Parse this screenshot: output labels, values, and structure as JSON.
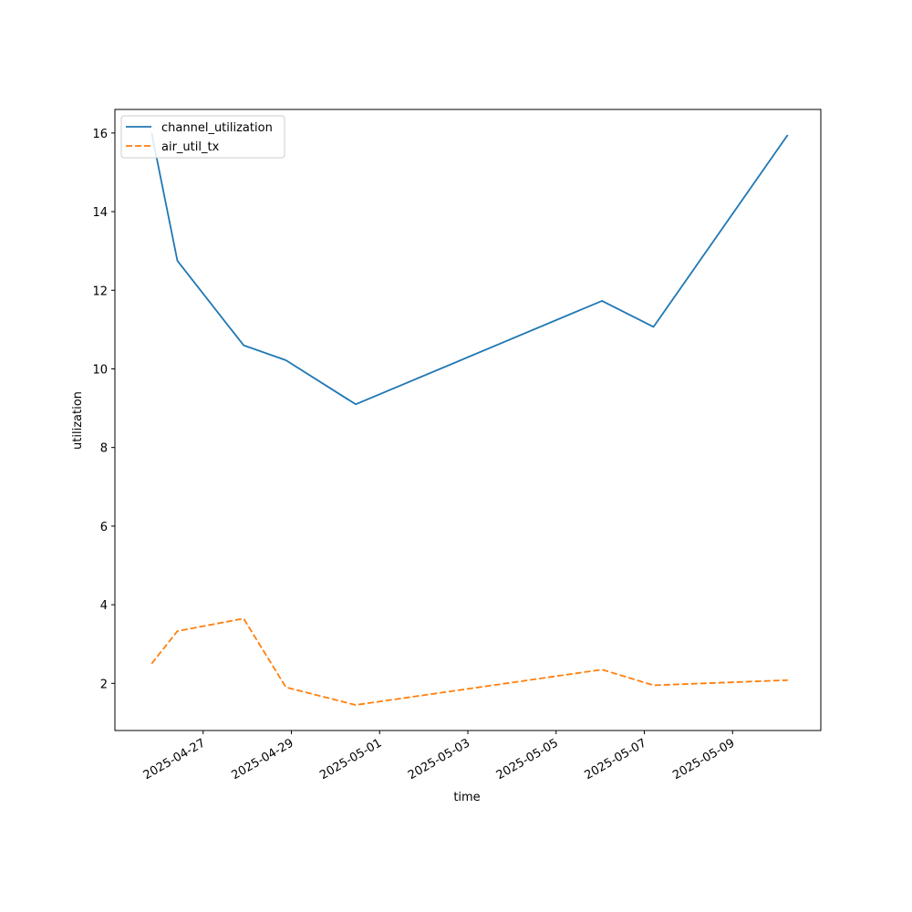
{
  "chart_data": {
    "type": "line",
    "title": "",
    "xlabel": "time",
    "ylabel": "utilization",
    "x_type": "date",
    "xlim": [
      "2025-04-25",
      "2025-05-11"
    ],
    "ylim": [
      0.8,
      16.6
    ],
    "y_ticks": [
      2,
      4,
      6,
      8,
      10,
      12,
      14,
      16
    ],
    "x_ticks": [
      "2025-04-27",
      "2025-04-29",
      "2025-05-01",
      "2025-05-03",
      "2025-05-05",
      "2025-05-07",
      "2025-05-09"
    ],
    "grid": false,
    "legend_position": "top-left",
    "series": [
      {
        "name": "channel_utilization",
        "color": "#1f77b4",
        "dash": "solid",
        "points": [
          [
            "2025-04-25 20:00",
            16.0
          ],
          [
            "2025-04-26 10:00",
            12.75
          ],
          [
            "2025-04-27 22:00",
            10.6
          ],
          [
            "2025-04-28 21:00",
            10.22
          ],
          [
            "2025-04-30 11:00",
            9.1
          ],
          [
            "2025-05-06 01:00",
            11.73
          ],
          [
            "2025-05-07 05:00",
            11.07
          ],
          [
            "2025-05-10 06:00",
            15.95
          ]
        ]
      },
      {
        "name": "air_util_tx",
        "color": "#ff7f0e",
        "dash": "dashed",
        "points": [
          [
            "2025-04-25 20:00",
            2.5
          ],
          [
            "2025-04-26 10:00",
            3.33
          ],
          [
            "2025-04-27 22:00",
            3.65
          ],
          [
            "2025-04-28 21:00",
            1.9
          ],
          [
            "2025-04-30 11:00",
            1.45
          ],
          [
            "2025-05-06 01:00",
            2.35
          ],
          [
            "2025-05-07 05:00",
            1.95
          ],
          [
            "2025-05-10 06:00",
            2.08
          ]
        ]
      }
    ]
  }
}
